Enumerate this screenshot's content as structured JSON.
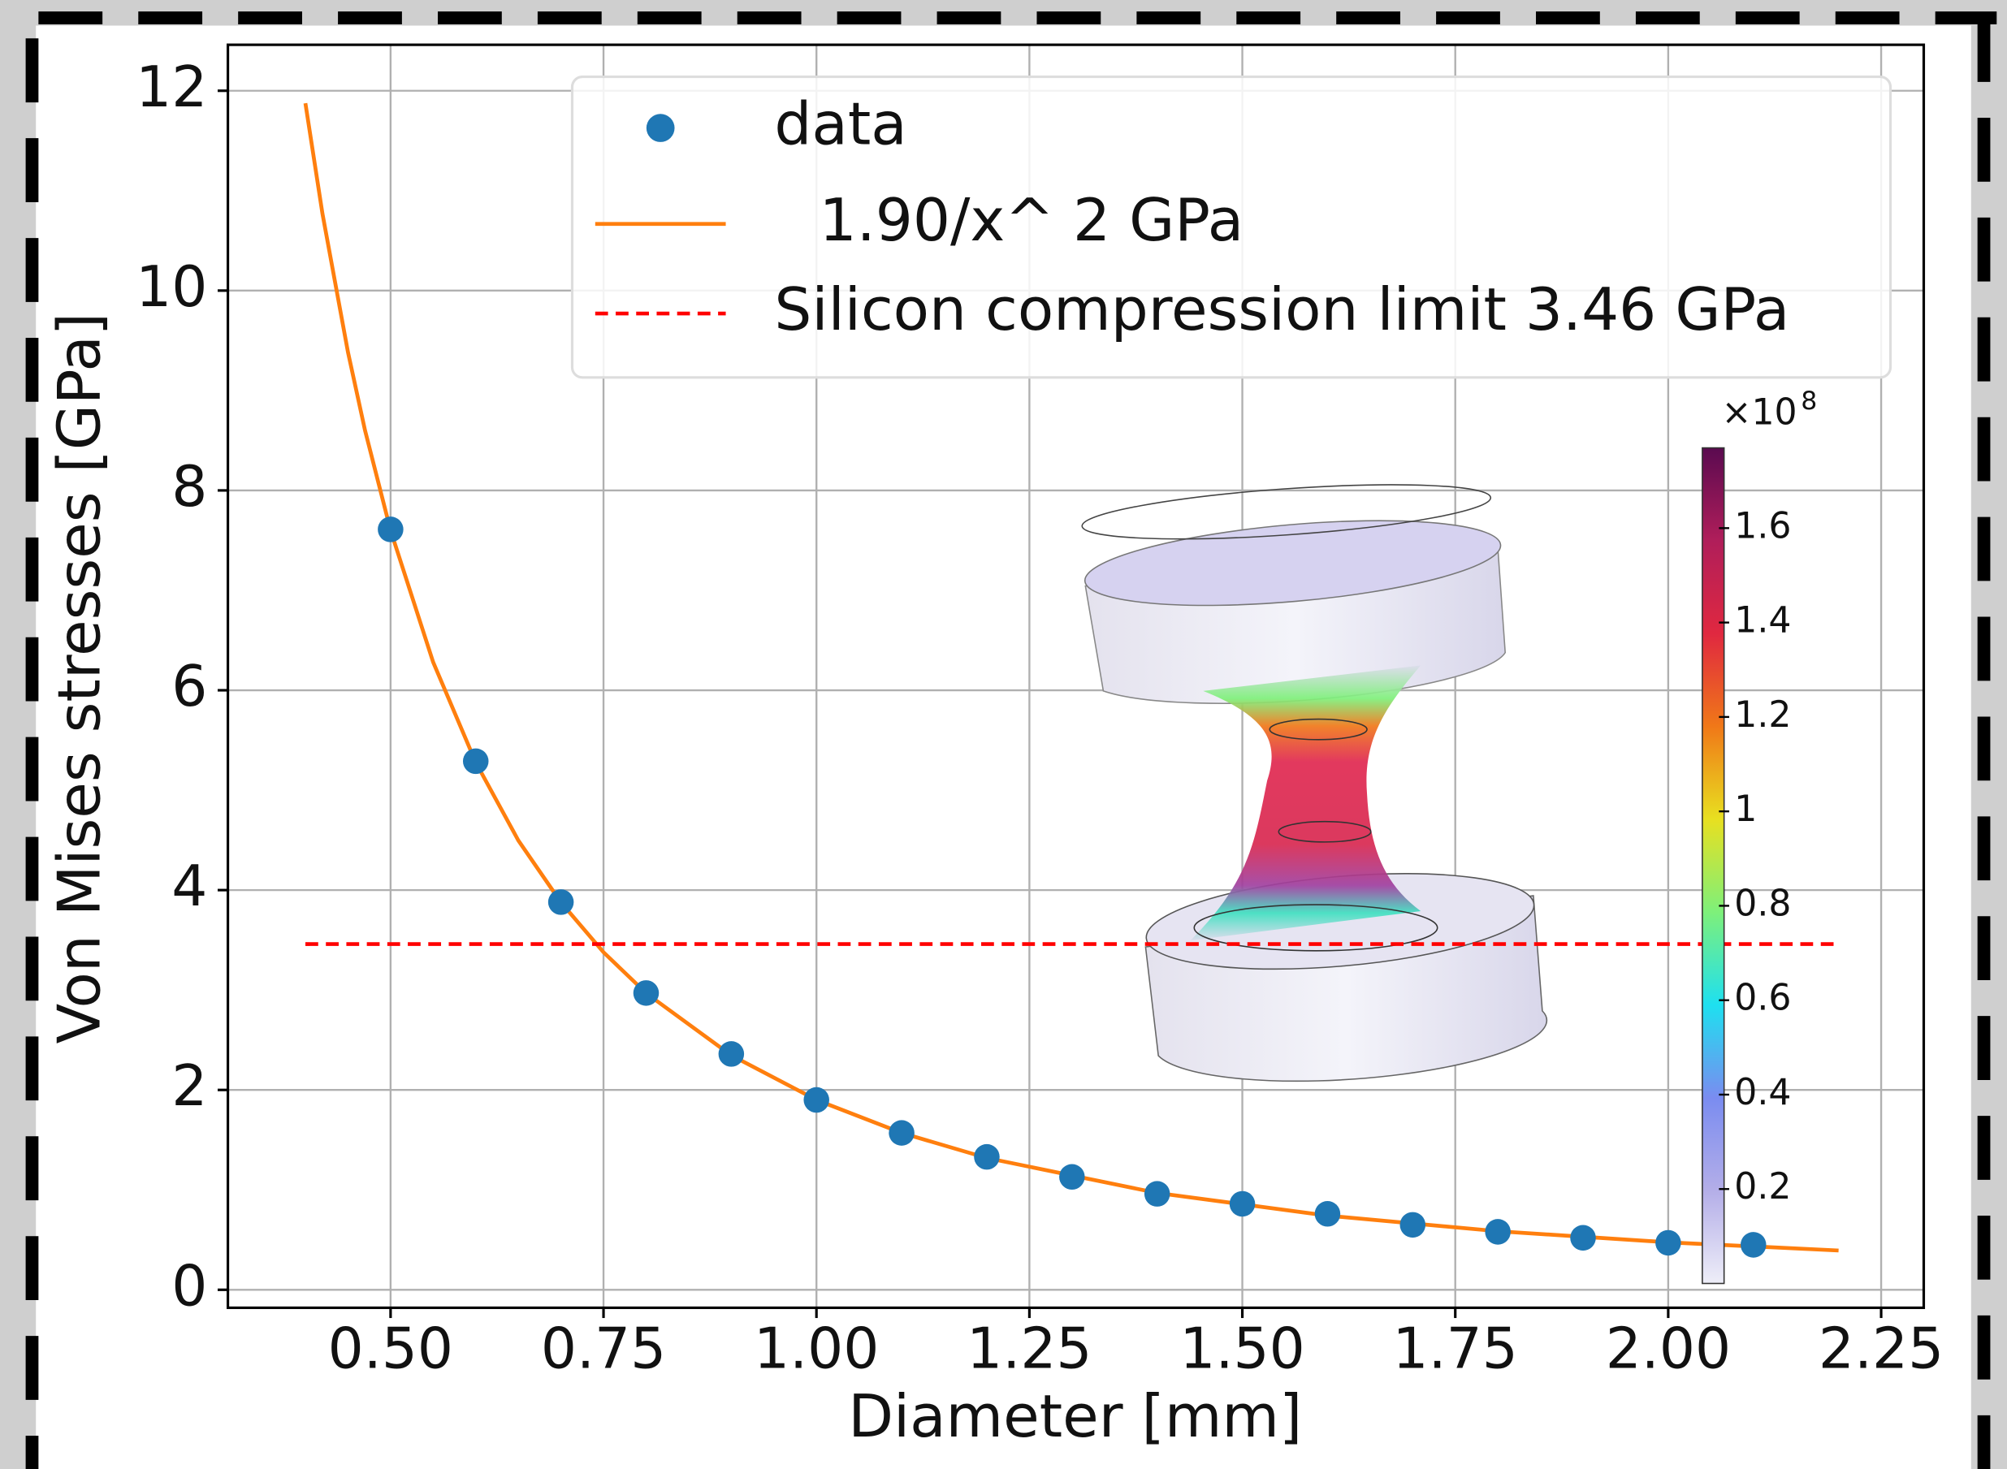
{
  "chart_data": {
    "type": "scatter",
    "xlabel": "Diameter [mm]",
    "ylabel": "Von Mises stresses [GPa]",
    "xlim": [
      0.309,
      2.3
    ],
    "ylim": [
      -0.18,
      12.46
    ],
    "xticks": [
      {
        "value": 0.5,
        "label": "0.50"
      },
      0.75,
      {
        "value": 1.0,
        "label": "1.00"
      },
      1.25,
      {
        "value": 1.5,
        "label": "1.50"
      },
      1.75,
      {
        "value": 2.0,
        "label": "2.00"
      },
      2.25
    ],
    "yticks": [
      0,
      2,
      4,
      6,
      8,
      10,
      12
    ],
    "grid": true,
    "legend": "upper right",
    "series": [
      {
        "name": "data",
        "type": "scatter",
        "color": "#1f77b4",
        "x": [
          0.5,
          0.6,
          0.7,
          0.8,
          0.9,
          1.0,
          1.1,
          1.2,
          1.3,
          1.4,
          1.5,
          1.6,
          1.7,
          1.8,
          1.9,
          2.0,
          2.1
        ],
        "values": [
          7.61,
          5.29,
          3.88,
          2.97,
          2.36,
          1.9,
          1.57,
          1.33,
          1.13,
          0.96,
          0.86,
          0.76,
          0.65,
          0.58,
          0.52,
          0.47,
          0.45
        ]
      },
      {
        "name": "1.90/x^ 2 GPa",
        "type": "line",
        "color": "#ff7f0e",
        "x": [
          0.4,
          0.42,
          0.45,
          0.47,
          0.5,
          0.55,
          0.6,
          0.65,
          0.7,
          0.75,
          0.8,
          0.9,
          1.0,
          1.1,
          1.2,
          1.4,
          1.6,
          1.8,
          2.0,
          2.2
        ],
        "values": [
          11.875,
          10.771,
          9.383,
          8.601,
          7.6,
          6.281,
          5.278,
          4.497,
          3.878,
          3.378,
          2.969,
          2.346,
          1.9,
          1.57,
          1.319,
          0.969,
          0.742,
          0.586,
          0.475,
          0.393
        ]
      },
      {
        "name": "Silicon compression limit 3.46 GPa",
        "type": "line",
        "dashed": true,
        "color": "#ff0000",
        "x": [
          0.4,
          2.2
        ],
        "values": [
          3.46,
          3.46
        ]
      }
    ],
    "colorbar": {
      "multiplier": "×10",
      "exponent": "8",
      "clim": [
        0,
        1.77
      ],
      "ticks": [
        0.2,
        0.4,
        0.6,
        0.8,
        1,
        1.2,
        1.4,
        1.6
      ],
      "colormap": [
        "#eeeef8",
        "#b4aee8",
        "#7a8cf0",
        "#1ee0f0",
        "#7ef07a",
        "#e8e020",
        "#f07818",
        "#e02840",
        "#b01e5a",
        "#5a0a50"
      ]
    }
  }
}
